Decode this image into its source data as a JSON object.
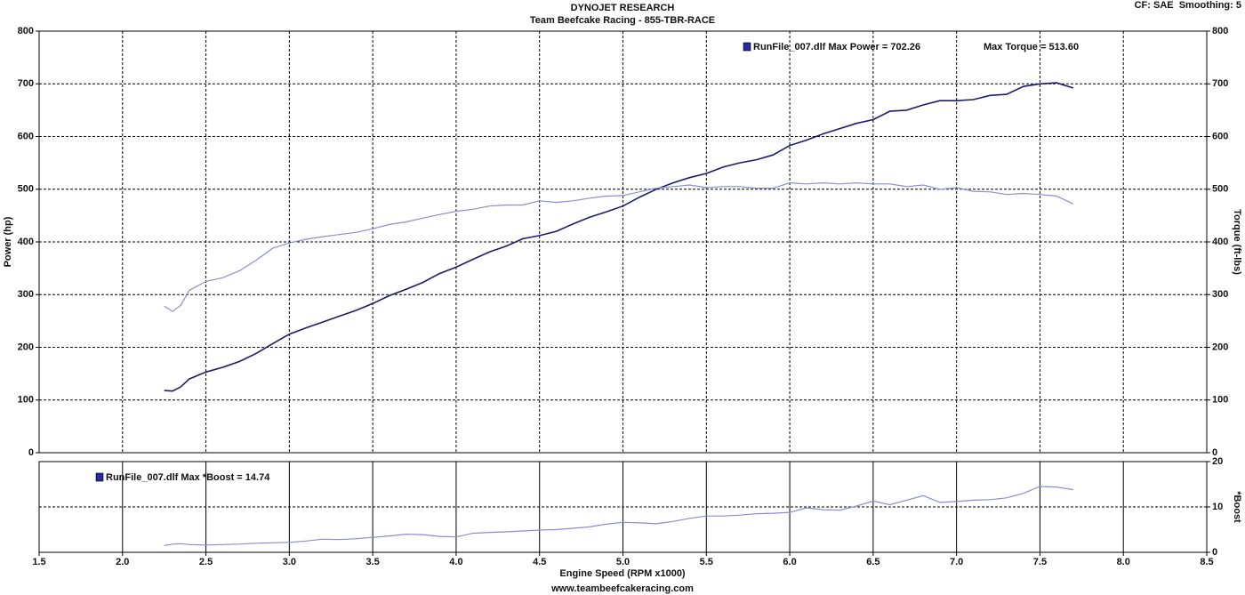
{
  "chart_data": [
    {
      "type": "line",
      "title": "DYNOJET RESEARCH",
      "subtitle": "Team Beefcake Racing - 855-TBR-RACE",
      "annotations": [
        "CF: SAE  Smoothing: 5"
      ],
      "ylabel": "Power (hp)",
      "y2label": "Torque (ft-lbs)",
      "xlim": [
        1.5,
        8.5
      ],
      "ylim": [
        0,
        800
      ],
      "yticks": [
        0,
        100,
        200,
        300,
        400,
        500,
        600,
        700,
        800
      ],
      "y2lim": [
        0,
        800
      ],
      "y2ticks": [
        0,
        100,
        200,
        300,
        400,
        500,
        600,
        700,
        800
      ],
      "grid": true,
      "x": [
        2.25,
        2.3,
        2.35,
        2.4,
        2.5,
        2.6,
        2.7,
        2.8,
        2.9,
        3.0,
        3.1,
        3.2,
        3.3,
        3.4,
        3.5,
        3.6,
        3.7,
        3.8,
        3.9,
        4.0,
        4.1,
        4.2,
        4.3,
        4.4,
        4.5,
        4.6,
        4.7,
        4.8,
        4.9,
        5.0,
        5.1,
        5.2,
        5.3,
        5.4,
        5.5,
        5.6,
        5.7,
        5.8,
        5.9,
        6.0,
        6.1,
        6.2,
        6.3,
        6.4,
        6.5,
        6.6,
        6.7,
        6.8,
        6.9,
        7.0,
        7.1,
        7.2,
        7.3,
        7.4,
        7.5,
        7.6,
        7.7
      ],
      "series": [
        {
          "name": "RunFile_007.dlf Max Power = 702.26",
          "color": "#1c1c6a",
          "values": [
            118,
            117,
            125,
            140,
            153,
            162,
            173,
            188,
            207,
            225,
            237,
            248,
            259,
            270,
            283,
            298,
            310,
            323,
            340,
            352,
            367,
            381,
            392,
            406,
            412,
            420,
            434,
            447,
            457,
            468,
            485,
            500,
            512,
            522,
            530,
            542,
            550,
            556,
            565,
            583,
            593,
            605,
            615,
            625,
            632,
            648,
            650,
            660,
            668,
            668,
            670,
            678,
            680,
            695,
            700,
            702,
            692
          ]
        },
        {
          "name": "Max Torque = 513.60",
          "color": "#8a8ed2",
          "axis": "y2",
          "values": [
            278,
            268,
            280,
            308,
            325,
            332,
            345,
            365,
            388,
            398,
            405,
            410,
            414,
            418,
            425,
            433,
            438,
            445,
            452,
            458,
            462,
            468,
            470,
            470,
            478,
            475,
            478,
            483,
            487,
            488,
            495,
            502,
            505,
            508,
            503,
            505,
            505,
            502,
            502,
            512,
            510,
            512,
            510,
            512,
            510,
            510,
            505,
            508,
            500,
            503,
            496,
            495,
            490,
            492,
            490,
            487,
            472
          ]
        }
      ]
    },
    {
      "type": "line",
      "xlabel": "Engine Speed (RPM x1000)",
      "y2label": "*Boost",
      "annotations": [
        "www.teambeefcakeracing.com"
      ],
      "xlim": [
        1.5,
        8.5
      ],
      "xticks": [
        1.5,
        {
          "value": 2,
          "label": "2.0"
        },
        2.5,
        {
          "value": 3,
          "label": "3.0"
        },
        3.5,
        {
          "value": 4,
          "label": "4.0"
        },
        4.5,
        {
          "value": 5,
          "label": "5.0"
        },
        5.5,
        {
          "value": 6,
          "label": "6.0"
        },
        6.5,
        {
          "value": 7,
          "label": "7.0"
        },
        7.5,
        {
          "value": 8,
          "label": "8.0"
        },
        8.5
      ],
      "y2lim": [
        0,
        20
      ],
      "y2ticks": [
        0,
        10,
        20
      ],
      "grid": true,
      "x": [
        2.25,
        2.3,
        2.35,
        2.4,
        2.5,
        2.6,
        2.7,
        2.8,
        2.9,
        3.0,
        3.1,
        3.2,
        3.3,
        3.4,
        3.5,
        3.6,
        3.7,
        3.8,
        3.9,
        4.0,
        4.1,
        4.2,
        4.3,
        4.4,
        4.5,
        4.6,
        4.7,
        4.8,
        4.9,
        5.0,
        5.1,
        5.2,
        5.3,
        5.4,
        5.5,
        5.6,
        5.7,
        5.8,
        5.9,
        6.0,
        6.1,
        6.2,
        6.3,
        6.4,
        6.5,
        6.6,
        6.7,
        6.8,
        6.9,
        7.0,
        7.1,
        7.2,
        7.3,
        7.4,
        7.5,
        7.6,
        7.7
      ],
      "series": [
        {
          "name": "RunFile_007.dlf Max *Boost = 14.74",
          "color": "#8a8ed2",
          "axis": "y2",
          "values": [
            1.5,
            1.8,
            1.9,
            1.7,
            1.6,
            1.7,
            1.8,
            2.0,
            2.1,
            2.2,
            2.5,
            2.9,
            2.8,
            3.0,
            3.3,
            3.6,
            4.0,
            3.9,
            3.5,
            3.4,
            4.2,
            4.4,
            4.5,
            4.7,
            4.9,
            5.0,
            5.3,
            5.6,
            6.2,
            6.6,
            6.5,
            6.3,
            6.8,
            7.5,
            8.0,
            8.0,
            8.2,
            8.5,
            8.6,
            8.8,
            9.8,
            9.4,
            9.3,
            10.2,
            11.3,
            10.5,
            11.5,
            12.5,
            11.0,
            11.2,
            11.5,
            11.6,
            12.0,
            13.0,
            14.5,
            14.4,
            13.8
          ]
        }
      ]
    }
  ]
}
